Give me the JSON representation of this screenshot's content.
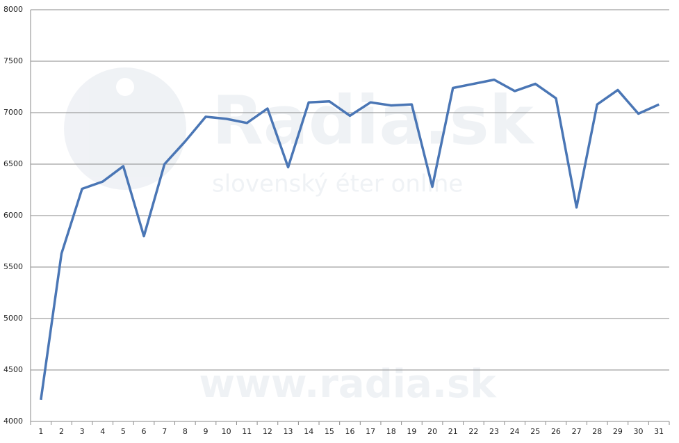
{
  "chart_data": {
    "type": "line",
    "categories": [
      "1",
      "2",
      "3",
      "4",
      "5",
      "6",
      "7",
      "8",
      "9",
      "10",
      "11",
      "12",
      "13",
      "14",
      "15",
      "16",
      "17",
      "18",
      "19",
      "20",
      "21",
      "22",
      "23",
      "24",
      "25",
      "26",
      "27",
      "28",
      "29",
      "30",
      "31"
    ],
    "values": [
      4210,
      5630,
      6260,
      6330,
      6480,
      5800,
      6500,
      6720,
      6960,
      6940,
      6900,
      7040,
      6470,
      7100,
      7110,
      6970,
      7100,
      7070,
      7080,
      6280,
      7240,
      7280,
      7320,
      7210,
      7280,
      7140,
      6080,
      7080,
      7220,
      6990,
      7080
    ],
    "color": "#4a76b5",
    "ylim": [
      4000,
      8000
    ],
    "yticks": [
      4000,
      4500,
      5000,
      5500,
      6000,
      6500,
      7000,
      7500,
      8000
    ],
    "grid": true,
    "watermark": {
      "brand": "Radia.sk",
      "slogan": "slovenský éter online",
      "url": "www.radia.sk"
    }
  }
}
